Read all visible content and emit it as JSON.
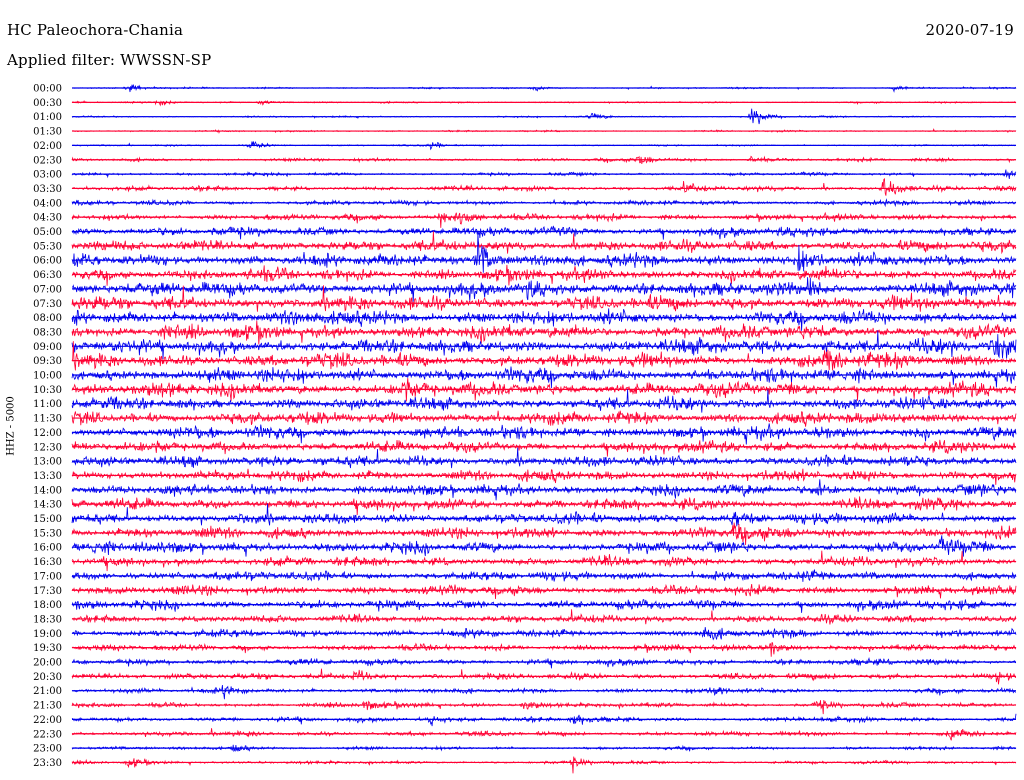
{
  "header": {
    "station": "HC Paleochora-Chania",
    "date": "2020-07-19",
    "filter": "Applied filter: WWSSN-SP"
  },
  "chart_data": {
    "type": "line",
    "title": "HC Paleochora-Chania",
    "ylabel": "HHZ - 5000",
    "trace_labels": [
      "00:00",
      "00:30",
      "01:00",
      "01:30",
      "02:00",
      "02:30",
      "03:00",
      "03:30",
      "04:00",
      "04:30",
      "05:00",
      "05:30",
      "06:00",
      "06:30",
      "07:00",
      "07:30",
      "08:00",
      "08:30",
      "09:00",
      "09:30",
      "10:00",
      "10:30",
      "11:00",
      "11:30",
      "12:00",
      "12:30",
      "13:00",
      "13:30",
      "14:00",
      "14:30",
      "15:00",
      "15:30",
      "16:00",
      "16:30",
      "17:00",
      "17:30",
      "18:00",
      "18:30",
      "19:00",
      "19:30",
      "20:00",
      "20:30",
      "21:00",
      "21:30",
      "22:00",
      "22:30",
      "23:00",
      "23:30"
    ],
    "colors": [
      "#0000ee",
      "#ff0033"
    ],
    "noise_level": [
      1,
      1,
      1,
      1,
      1,
      2,
      2,
      3,
      3,
      4,
      6,
      7,
      8,
      8,
      9,
      9,
      9,
      9,
      9,
      9,
      9,
      9,
      8,
      8,
      8,
      7,
      7,
      7,
      7,
      7,
      7,
      7,
      7,
      6,
      6,
      6,
      6,
      5,
      5,
      4,
      4,
      4,
      3,
      3,
      3,
      3,
      2,
      2
    ],
    "events": [
      {
        "trace": 0,
        "x": 0.06,
        "amp": 4
      },
      {
        "trace": 0,
        "x": 0.49,
        "amp": 3
      },
      {
        "trace": 0,
        "x": 0.87,
        "amp": 3
      },
      {
        "trace": 1,
        "x": 0.09,
        "amp": 3
      },
      {
        "trace": 1,
        "x": 0.2,
        "amp": 3
      },
      {
        "trace": 2,
        "x": 0.55,
        "amp": 4
      },
      {
        "trace": 2,
        "x": 0.72,
        "amp": 12
      },
      {
        "trace": 4,
        "x": 0.19,
        "amp": 5
      },
      {
        "trace": 4,
        "x": 0.38,
        "amp": 4
      },
      {
        "trace": 5,
        "x": 0.6,
        "amp": 7
      },
      {
        "trace": 5,
        "x": 0.72,
        "amp": 4
      },
      {
        "trace": 6,
        "x": 0.99,
        "amp": 5
      },
      {
        "trace": 7,
        "x": 0.86,
        "amp": 16
      },
      {
        "trace": 7,
        "x": 0.65,
        "amp": 5
      },
      {
        "trace": 9,
        "x": 0.39,
        "amp": 8
      },
      {
        "trace": 9,
        "x": 0.41,
        "amp": 10
      },
      {
        "trace": 12,
        "x": 0.43,
        "amp": 26
      },
      {
        "trace": 12,
        "x": 0.77,
        "amp": 14
      },
      {
        "trace": 14,
        "x": 0.78,
        "amp": 12
      },
      {
        "trace": 14,
        "x": 0.48,
        "amp": 8
      },
      {
        "trace": 16,
        "x": 0.28,
        "amp": 10
      },
      {
        "trace": 18,
        "x": 0.98,
        "amp": 16
      },
      {
        "trace": 18,
        "x": 0.8,
        "amp": 10
      },
      {
        "trace": 19,
        "x": 0.8,
        "amp": 14
      },
      {
        "trace": 21,
        "x": 0.35,
        "amp": 8
      },
      {
        "trace": 26,
        "x": 0.12,
        "amp": 6
      },
      {
        "trace": 28,
        "x": 0.79,
        "amp": 8
      },
      {
        "trace": 30,
        "x": 0.7,
        "amp": 8
      },
      {
        "trace": 31,
        "x": 0.7,
        "amp": 10
      },
      {
        "trace": 32,
        "x": 0.02,
        "amp": 8
      },
      {
        "trace": 32,
        "x": 0.92,
        "amp": 7
      },
      {
        "trace": 38,
        "x": 0.67,
        "amp": 6
      },
      {
        "trace": 39,
        "x": 0.74,
        "amp": 8
      },
      {
        "trace": 41,
        "x": 0.3,
        "amp": 6
      },
      {
        "trace": 41,
        "x": 0.98,
        "amp": 6
      },
      {
        "trace": 42,
        "x": 0.16,
        "amp": 6
      },
      {
        "trace": 42,
        "x": 0.68,
        "amp": 6
      },
      {
        "trace": 43,
        "x": 0.31,
        "amp": 7
      },
      {
        "trace": 43,
        "x": 0.48,
        "amp": 7
      },
      {
        "trace": 43,
        "x": 0.79,
        "amp": 8
      },
      {
        "trace": 44,
        "x": 0.38,
        "amp": 6
      },
      {
        "trace": 44,
        "x": 0.53,
        "amp": 7
      },
      {
        "trace": 45,
        "x": 0.93,
        "amp": 7
      },
      {
        "trace": 46,
        "x": 0.17,
        "amp": 6
      },
      {
        "trace": 47,
        "x": 0.06,
        "amp": 6
      },
      {
        "trace": 47,
        "x": 0.53,
        "amp": 7
      }
    ]
  }
}
